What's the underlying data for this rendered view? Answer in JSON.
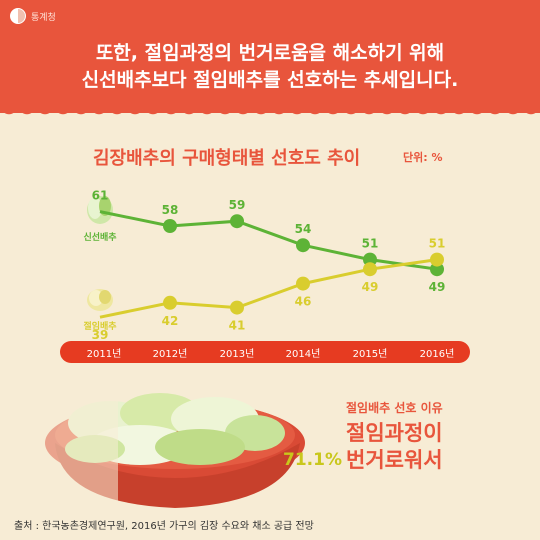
{
  "header": {
    "logo_text": "통계청",
    "headline_line1": "또한, 절임과정의 번거로움을 해소하기 위해",
    "headline_line2": "신선배추보다 절임배추를 선호하는 추세입니다."
  },
  "chart_data": {
    "type": "line",
    "title": "김장배추의 구매형태별 선호도 추이",
    "unit_label": "단위: %",
    "categories": [
      "2011년",
      "2012년",
      "2013년",
      "2014년",
      "2015년",
      "2016년"
    ],
    "series": [
      {
        "name": "신선배추",
        "values": [
          61,
          58,
          59,
          54,
          51,
          49
        ],
        "color": "#5db336"
      },
      {
        "name": "절임배추",
        "values": [
          39,
          42,
          41,
          46,
          49,
          51
        ],
        "color": "#d9cd2e"
      }
    ],
    "ylim": [
      35,
      65
    ]
  },
  "reason": {
    "label": "절임배추 선호 이유",
    "text_line1": "절임과정이",
    "text_line2": "번거로워서",
    "percent": "71.1%"
  },
  "source": "출처 : 한국농촌경제연구원, 2016년 가구의 김장 수요와 채소 공급 전망",
  "colors": {
    "brand_red": "#e8553c",
    "background": "#f7ecd5"
  }
}
